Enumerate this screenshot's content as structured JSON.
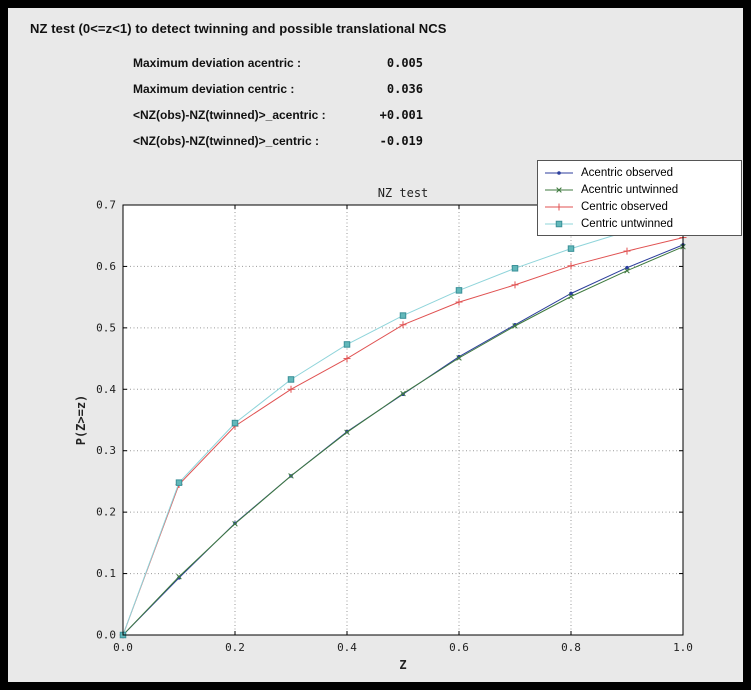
{
  "window": {
    "frame_color": "#000000",
    "panel_background": "#e9e9e9"
  },
  "header": {
    "title": "NZ test (0<=z<1) to detect twinning and possible translational NCS"
  },
  "stats": {
    "rows": [
      {
        "label": "Maximum deviation acentric :",
        "value": "0.005"
      },
      {
        "label": "Maximum deviation centric :",
        "value": "0.036"
      },
      {
        "label": "<NZ(obs)-NZ(twinned)>_acentric :",
        "value": "+0.001"
      },
      {
        "label": "<NZ(obs)-NZ(twinned)>_centric :",
        "value": "-0.019"
      }
    ]
  },
  "chart_data": {
    "type": "line",
    "title": "NZ test",
    "xlabel": "Z",
    "ylabel": "P(Z>=z)",
    "xlim": [
      0.0,
      1.0
    ],
    "ylim": [
      0.0,
      0.7
    ],
    "xticks": [
      0.0,
      0.2,
      0.4,
      0.6,
      0.8,
      1.0
    ],
    "yticks": [
      0.0,
      0.1,
      0.2,
      0.3,
      0.4,
      0.5,
      0.6,
      0.7
    ],
    "grid": true,
    "grid_style": "dotted",
    "legend_position": "top-right",
    "plot_background": "#ffffff",
    "x": [
      0.0,
      0.1,
      0.2,
      0.3,
      0.4,
      0.5,
      0.6,
      0.7,
      0.8,
      0.9,
      1.0
    ],
    "series": [
      {
        "name": "Acentric observed",
        "color": "#2c3e9c",
        "marker": "dot",
        "values": [
          0.0,
          0.093,
          0.182,
          0.259,
          0.331,
          0.392,
          0.453,
          0.505,
          0.556,
          0.598,
          0.635
        ]
      },
      {
        "name": "Acentric untwinned",
        "color": "#3f7a3f",
        "marker": "x",
        "values": [
          0.0,
          0.095,
          0.181,
          0.259,
          0.33,
          0.393,
          0.451,
          0.503,
          0.551,
          0.593,
          0.632
        ]
      },
      {
        "name": "Centric observed",
        "color": "#e05252",
        "marker": "plus",
        "values": [
          0.0,
          0.245,
          0.34,
          0.4,
          0.45,
          0.505,
          0.542,
          0.57,
          0.601,
          0.625,
          0.647
        ]
      },
      {
        "name": "Centric untwinned",
        "color": "#8fd4da",
        "marker": "square",
        "marker_fill": "#62b8ba",
        "marker_edge": "#3a9098",
        "values": [
          0.0,
          0.248,
          0.345,
          0.416,
          0.473,
          0.52,
          0.561,
          0.597,
          0.629,
          0.657,
          0.683
        ]
      }
    ]
  }
}
